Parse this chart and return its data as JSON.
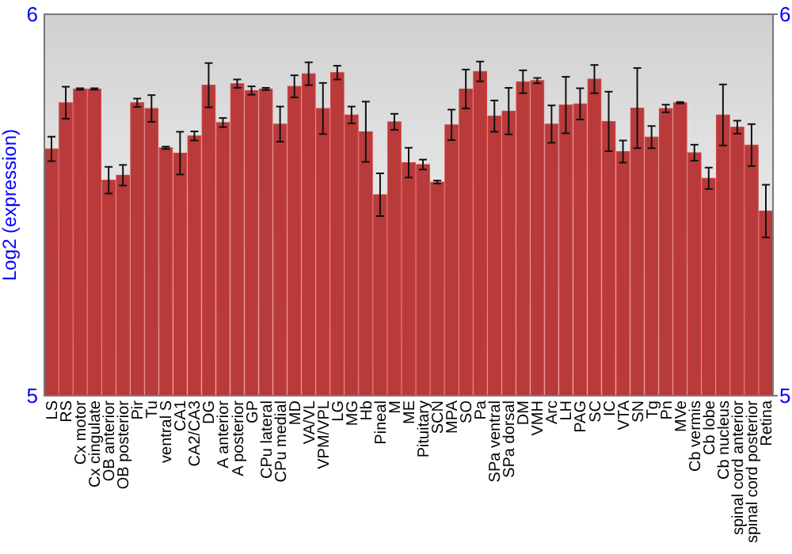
{
  "chart_data": {
    "type": "bar",
    "ylabel": "Log2 (expression)",
    "categories": [
      "LS",
      "RS",
      "Cx motor",
      "Cx cingulate",
      "OB anterior",
      "OB posterior",
      "Pir",
      "Tu",
      "ventral S",
      "CA1",
      "CA2/CA3",
      "DG",
      "A anterior",
      "A posterior",
      "GP",
      "CPu lateral",
      "CPu medial",
      "MD",
      "VA/VL",
      "VPM/VPL",
      "LG",
      "MG",
      "Hb",
      "Pineal",
      "M",
      "ME",
      "Pituitary",
      "SCN",
      "MPA",
      "SO",
      "Pa",
      "SPa ventral",
      "SPa dorsal",
      "DM",
      "VMH",
      "Arc",
      "LH",
      "PAG",
      "SC",
      "IC",
      "VTA",
      "SN",
      "Tg",
      "Pn",
      "MVe",
      "Cb vermis",
      "Cb lobe",
      "Cb nucleus",
      "spinal cord anterior",
      "spinal cord posterior",
      "Retina"
    ],
    "values": [
      5.647,
      5.768,
      5.804,
      5.804,
      5.565,
      5.578,
      5.768,
      5.753,
      5.65,
      5.636,
      5.681,
      5.814,
      5.716,
      5.818,
      5.8,
      5.804,
      5.712,
      5.811,
      5.844,
      5.753,
      5.847,
      5.736,
      5.692,
      5.527,
      5.718,
      5.611,
      5.606,
      5.56,
      5.71,
      5.804,
      5.85,
      5.733,
      5.746,
      5.823,
      5.826,
      5.712,
      5.762,
      5.765,
      5.83,
      5.719,
      5.64,
      5.754,
      5.678,
      5.753,
      5.768,
      5.637,
      5.57,
      5.736,
      5.704,
      5.657,
      5.484
    ],
    "errors": [
      0.032,
      0.042,
      0.002,
      0.002,
      0.035,
      0.027,
      0.011,
      0.035,
      0.003,
      0.056,
      0.012,
      0.058,
      0.012,
      0.011,
      0.011,
      0.003,
      0.046,
      0.029,
      0.03,
      0.067,
      0.018,
      0.022,
      0.079,
      0.056,
      0.021,
      0.039,
      0.013,
      0.004,
      0.04,
      0.051,
      0.026,
      0.041,
      0.061,
      0.03,
      0.007,
      0.049,
      0.074,
      0.041,
      0.037,
      0.078,
      0.029,
      0.105,
      0.029,
      0.01,
      0.002,
      0.021,
      0.028,
      0.08,
      0.017,
      0.055,
      0.069
    ],
    "color": "#b83a3a",
    "ylim": [
      5,
      6
    ],
    "yticks": [
      5,
      6
    ],
    "y2lim": [
      5,
      6
    ],
    "y2ticks": [
      5,
      6
    ]
  }
}
